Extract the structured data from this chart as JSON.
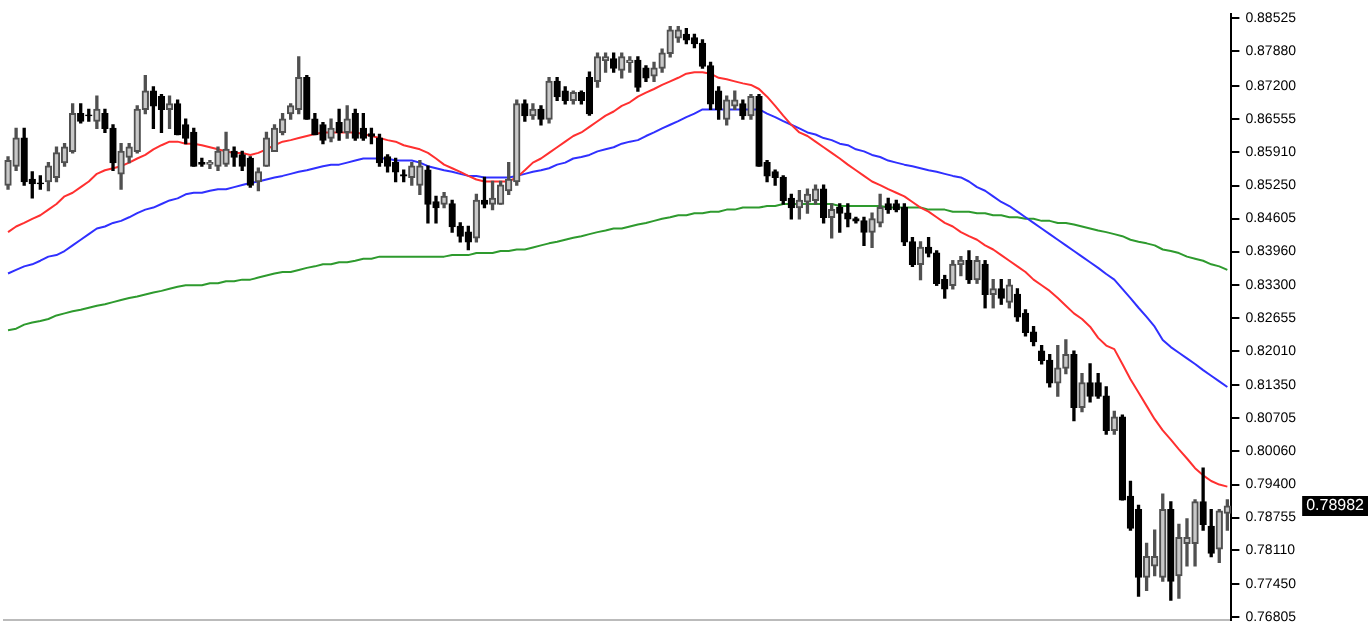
{
  "chart_data": {
    "type": "candlestick",
    "categories": [
      null,
      null,
      null,
      null,
      null,
      null,
      null,
      null,
      null,
      null,
      null,
      null,
      null,
      null,
      null,
      null,
      null,
      null,
      null,
      null,
      null,
      null,
      null,
      null,
      null,
      null,
      null,
      null,
      null,
      null,
      null,
      null,
      null,
      null,
      null,
      null,
      null,
      null,
      null,
      null,
      null,
      null,
      null,
      null,
      null,
      null,
      null,
      null,
      null,
      null,
      null,
      null,
      null,
      null,
      null,
      null,
      null,
      null,
      null,
      null,
      null,
      null,
      null,
      null,
      null,
      null,
      null,
      null,
      null,
      null,
      null,
      null,
      null,
      null,
      null,
      null,
      null,
      null,
      null,
      null,
      null,
      null,
      null,
      null,
      null,
      null,
      null,
      null,
      null,
      null,
      null,
      null,
      null,
      null,
      null,
      null,
      null,
      null,
      null,
      null,
      null,
      null,
      null,
      null,
      null,
      null,
      null,
      null,
      null,
      null,
      null,
      null,
      null,
      null,
      null,
      null,
      null,
      null,
      null,
      null,
      null,
      null,
      null,
      null,
      null,
      null,
      null,
      null,
      null,
      null,
      null,
      null,
      null,
      null,
      null,
      null,
      null,
      null,
      null,
      null,
      null,
      null,
      null,
      null,
      null,
      null,
      null,
      null,
      null,
      null,
      null,
      null
    ],
    "ohlc": [
      [
        0.8526,
        0.8581,
        0.8518,
        0.8574
      ],
      [
        0.8563,
        0.8637,
        0.8555,
        0.8618
      ],
      [
        0.8618,
        0.8637,
        0.8526,
        0.8533
      ],
      [
        0.8537,
        0.8552,
        0.8501,
        0.8529
      ],
      [
        0.853,
        0.8544,
        0.8518,
        0.8529
      ],
      [
        0.8533,
        0.857,
        0.8515,
        0.8563
      ],
      [
        0.8541,
        0.86,
        0.8533,
        0.8589
      ],
      [
        0.857,
        0.8607,
        0.8563,
        0.86
      ],
      [
        0.8592,
        0.8685,
        0.8589,
        0.8666
      ],
      [
        0.8666,
        0.8685,
        0.8648,
        0.8651
      ],
      [
        0.8663,
        0.8674,
        0.8651,
        0.8662
      ],
      [
        0.8651,
        0.87,
        0.8637,
        0.8674
      ],
      [
        0.8666,
        0.8674,
        0.8629,
        0.8637
      ],
      [
        0.8637,
        0.8644,
        0.8555,
        0.857
      ],
      [
        0.8548,
        0.8607,
        0.8518,
        0.8592
      ],
      [
        0.8581,
        0.8607,
        0.857,
        0.86
      ],
      [
        0.8592,
        0.8681,
        0.8589,
        0.8674
      ],
      [
        0.8674,
        0.874,
        0.8666,
        0.871
      ],
      [
        0.871,
        0.8718,
        0.8637,
        0.8681
      ],
      [
        0.8699,
        0.8703,
        0.8629,
        0.8674
      ],
      [
        0.8674,
        0.87,
        0.8637,
        0.8685
      ],
      [
        0.8685,
        0.8692,
        0.8625,
        0.8625
      ],
      [
        0.8644,
        0.8655,
        0.8607,
        0.8618
      ],
      [
        0.8629,
        0.8637,
        0.8563,
        0.8563
      ],
      [
        0.857,
        0.8578,
        0.8563,
        0.8567
      ],
      [
        0.8567,
        0.8574,
        0.8559,
        0.857
      ],
      [
        0.8563,
        0.86,
        0.8555,
        0.8592
      ],
      [
        0.8567,
        0.8629,
        0.8563,
        0.8596
      ],
      [
        0.8592,
        0.86,
        0.8563,
        0.8581
      ],
      [
        0.8585,
        0.8592,
        0.8555,
        0.8563
      ],
      [
        0.8578,
        0.8581,
        0.8522,
        0.8526
      ],
      [
        0.8533,
        0.8559,
        0.8515,
        0.8552
      ],
      [
        0.8563,
        0.8629,
        0.8563,
        0.8618
      ],
      [
        0.8592,
        0.8644,
        0.8592,
        0.8637
      ],
      [
        0.8629,
        0.8666,
        0.8625,
        0.8655
      ],
      [
        0.8666,
        0.8685,
        0.8655,
        0.8681
      ],
      [
        0.8674,
        0.8777,
        0.8666,
        0.8736
      ],
      [
        0.8736,
        0.874,
        0.8655,
        0.8655
      ],
      [
        0.8655,
        0.8666,
        0.8625,
        0.8625
      ],
      [
        0.8644,
        0.8648,
        0.8607,
        0.8614
      ],
      [
        0.8618,
        0.8655,
        0.8611,
        0.8637
      ],
      [
        0.8648,
        0.8674,
        0.8614,
        0.8629
      ],
      [
        0.8629,
        0.8681,
        0.8618,
        0.8655
      ],
      [
        0.8666,
        0.8674,
        0.8614,
        0.8618
      ],
      [
        0.8637,
        0.8666,
        0.8614,
        0.8618
      ],
      [
        0.8626,
        0.8637,
        0.8607,
        0.8622
      ],
      [
        0.8618,
        0.8625,
        0.8563,
        0.857
      ],
      [
        0.8581,
        0.8585,
        0.8552,
        0.8563
      ],
      [
        0.857,
        0.8578,
        0.8533,
        0.8552
      ],
      [
        0.8546,
        0.8555,
        0.8533,
        0.8544
      ],
      [
        0.8541,
        0.857,
        0.8526,
        0.8563
      ],
      [
        0.8526,
        0.8574,
        0.8508,
        0.8563
      ],
      [
        0.8555,
        0.8563,
        0.8452,
        0.8489
      ],
      [
        0.8493,
        0.8504,
        0.8452,
        0.8482
      ],
      [
        0.8489,
        0.8511,
        0.8482,
        0.8504
      ],
      [
        0.8489,
        0.8496,
        0.8434,
        0.8445
      ],
      [
        0.8445,
        0.8452,
        0.8415,
        0.8426
      ],
      [
        0.8434,
        0.8445,
        0.84,
        0.8415
      ],
      [
        0.8423,
        0.8508,
        0.8415,
        0.8496
      ],
      [
        0.8496,
        0.8541,
        0.8482,
        0.8489
      ],
      [
        0.8489,
        0.8533,
        0.8478,
        0.85
      ],
      [
        0.8489,
        0.8533,
        0.8489,
        0.8526
      ],
      [
        0.8515,
        0.857,
        0.8508,
        0.8537
      ],
      [
        0.8533,
        0.8692,
        0.8526,
        0.8685
      ],
      [
        0.8685,
        0.8692,
        0.8651,
        0.8662
      ],
      [
        0.8662,
        0.8685,
        0.8655,
        0.8674
      ],
      [
        0.8674,
        0.8681,
        0.8644,
        0.8655
      ],
      [
        0.8655,
        0.8736,
        0.8648,
        0.8729
      ],
      [
        0.8729,
        0.8736,
        0.8692,
        0.8699
      ],
      [
        0.871,
        0.8718,
        0.8685,
        0.8692
      ],
      [
        0.8692,
        0.871,
        0.8685,
        0.8707
      ],
      [
        0.8707,
        0.871,
        0.8685,
        0.8692
      ],
      [
        0.8736,
        0.8747,
        0.8663,
        0.8666
      ],
      [
        0.8729,
        0.8784,
        0.8718,
        0.8777
      ],
      [
        0.877,
        0.8784,
        0.8747,
        0.8777
      ],
      [
        0.8773,
        0.8784,
        0.8747,
        0.8755
      ],
      [
        0.8751,
        0.8784,
        0.8736,
        0.8777
      ],
      [
        0.8766,
        0.8777,
        0.8747,
        0.877
      ],
      [
        0.877,
        0.8777,
        0.871,
        0.8718
      ],
      [
        0.8755,
        0.8759,
        0.8729,
        0.8736
      ],
      [
        0.874,
        0.8766,
        0.8729,
        0.8755
      ],
      [
        0.8755,
        0.8792,
        0.8747,
        0.8784
      ],
      [
        0.8784,
        0.8836,
        0.8777,
        0.8829
      ],
      [
        0.8814,
        0.8836,
        0.8806,
        0.8829
      ],
      [
        0.8821,
        0.8832,
        0.8803,
        0.881
      ],
      [
        0.8814,
        0.8821,
        0.8795,
        0.8803
      ],
      [
        0.8803,
        0.881,
        0.8755,
        0.8759
      ],
      [
        0.8759,
        0.8766,
        0.8674,
        0.8685
      ],
      [
        0.871,
        0.8718,
        0.8655,
        0.8674
      ],
      [
        0.8655,
        0.87,
        0.8644,
        0.8692
      ],
      [
        0.8681,
        0.871,
        0.8674,
        0.8692
      ],
      [
        0.8685,
        0.8692,
        0.8655,
        0.8662
      ],
      [
        0.8662,
        0.8703,
        0.8655,
        0.8699
      ],
      [
        0.8699,
        0.8703,
        0.8563,
        0.8563
      ],
      [
        0.857,
        0.8574,
        0.8533,
        0.8544
      ],
      [
        0.8552,
        0.8555,
        0.8526,
        0.8541
      ],
      [
        0.8541,
        0.8544,
        0.8489,
        0.8496
      ],
      [
        0.85,
        0.8508,
        0.846,
        0.8482
      ],
      [
        0.8482,
        0.8515,
        0.846,
        0.8496
      ],
      [
        0.8493,
        0.8518,
        0.8471,
        0.8508
      ],
      [
        0.8496,
        0.8526,
        0.8489,
        0.8518
      ],
      [
        0.8518,
        0.8526,
        0.8452,
        0.8463
      ],
      [
        0.8463,
        0.8489,
        0.8423,
        0.8478
      ],
      [
        0.8482,
        0.8489,
        0.8434,
        0.8471
      ],
      [
        0.8471,
        0.8489,
        0.8445,
        0.846
      ],
      [
        0.846,
        0.8463,
        0.8452,
        0.8456
      ],
      [
        0.8456,
        0.8463,
        0.8408,
        0.8434
      ],
      [
        0.8434,
        0.8471,
        0.8404,
        0.846
      ],
      [
        0.8452,
        0.8508,
        0.8445,
        0.8482
      ],
      [
        0.8489,
        0.85,
        0.8471,
        0.8478
      ],
      [
        0.8489,
        0.8496,
        0.8474,
        0.8478
      ],
      [
        0.8482,
        0.8489,
        0.8408,
        0.8415
      ],
      [
        0.8415,
        0.8423,
        0.8367,
        0.8371
      ],
      [
        0.8371,
        0.8415,
        0.8341,
        0.8404
      ],
      [
        0.8404,
        0.8423,
        0.8386,
        0.8393
      ],
      [
        0.8393,
        0.8397,
        0.833,
        0.8334
      ],
      [
        0.8341,
        0.8349,
        0.8305,
        0.8323
      ],
      [
        0.833,
        0.8378,
        0.8323,
        0.8371
      ],
      [
        0.8371,
        0.8386,
        0.8349,
        0.8378
      ],
      [
        0.8378,
        0.8397,
        0.8334,
        0.8341
      ],
      [
        0.8341,
        0.8386,
        0.8334,
        0.8378
      ],
      [
        0.8371,
        0.8378,
        0.8286,
        0.8312
      ],
      [
        0.8312,
        0.8341,
        0.8286,
        0.8323
      ],
      [
        0.8323,
        0.8341,
        0.8293,
        0.8305
      ],
      [
        0.8297,
        0.8341,
        0.8286,
        0.833
      ],
      [
        0.8312,
        0.8323,
        0.826,
        0.8268
      ],
      [
        0.8275,
        0.8282,
        0.8231,
        0.8238
      ],
      [
        0.8238,
        0.8249,
        0.8212,
        0.822
      ],
      [
        0.8201,
        0.8212,
        0.8176,
        0.8183
      ],
      [
        0.8183,
        0.8194,
        0.8131,
        0.8139
      ],
      [
        0.8139,
        0.8212,
        0.8113,
        0.8168
      ],
      [
        0.8168,
        0.8223,
        0.8157,
        0.8194
      ],
      [
        0.8194,
        0.8201,
        0.8065,
        0.8091
      ],
      [
        0.8091,
        0.8157,
        0.8083,
        0.8139
      ],
      [
        0.8139,
        0.8176,
        0.8102,
        0.8113
      ],
      [
        0.8139,
        0.8157,
        0.8109,
        0.8113
      ],
      [
        0.8113,
        0.8131,
        0.8039,
        0.8046
      ],
      [
        0.8046,
        0.8083,
        0.8039,
        0.8072
      ],
      [
        0.8072,
        0.8076,
        0.791,
        0.791
      ],
      [
        0.7917,
        0.7946,
        0.7851,
        0.7855
      ],
      [
        0.7891,
        0.7899,
        0.7722,
        0.7759
      ],
      [
        0.7759,
        0.7825,
        0.7733,
        0.7799
      ],
      [
        0.7781,
        0.7851,
        0.7762,
        0.7799
      ],
      [
        0.7759,
        0.7921,
        0.7751,
        0.7891
      ],
      [
        0.7891,
        0.7906,
        0.7714,
        0.7751
      ],
      [
        0.7762,
        0.7862,
        0.7718,
        0.7836
      ],
      [
        0.7825,
        0.7873,
        0.7781,
        0.7836
      ],
      [
        0.7825,
        0.791,
        0.7781,
        0.7906
      ],
      [
        0.7906,
        0.7972,
        0.7851,
        0.7862
      ],
      [
        0.7858,
        0.7891,
        0.7799,
        0.7806
      ],
      [
        0.7814,
        0.7891,
        0.7788,
        0.7888
      ],
      [
        0.7884,
        0.791,
        0.7851,
        0.7898
      ]
    ],
    "series": [
      {
        "type": "line",
        "color": "#ff3030",
        "values": [
          0.8434,
          0.8445,
          0.8452,
          0.846,
          0.8467,
          0.8478,
          0.8489,
          0.8504,
          0.8511,
          0.8522,
          0.8533,
          0.8548,
          0.8555,
          0.8559,
          0.8563,
          0.857,
          0.8578,
          0.8585,
          0.8596,
          0.8604,
          0.8611,
          0.8611,
          0.8607,
          0.8607,
          0.8604,
          0.86,
          0.8596,
          0.8592,
          0.8589,
          0.8589,
          0.8585,
          0.8589,
          0.8596,
          0.8604,
          0.8611,
          0.8614,
          0.8618,
          0.8622,
          0.8626,
          0.8629,
          0.8629,
          0.8629,
          0.8629,
          0.8629,
          0.8626,
          0.8622,
          0.8618,
          0.8614,
          0.8611,
          0.8604,
          0.86,
          0.8596,
          0.8589,
          0.8578,
          0.8566,
          0.8559,
          0.8552,
          0.8544,
          0.8537,
          0.8533,
          0.8533,
          0.8533,
          0.8533,
          0.8541,
          0.8555,
          0.857,
          0.8578,
          0.8589,
          0.86,
          0.8611,
          0.8622,
          0.8629,
          0.864,
          0.8651,
          0.8662,
          0.867,
          0.8681,
          0.8688,
          0.8699,
          0.8707,
          0.8714,
          0.8722,
          0.8729,
          0.8736,
          0.8744,
          0.8747,
          0.8747,
          0.8744,
          0.8736,
          0.8733,
          0.8729,
          0.8725,
          0.8722,
          0.8714,
          0.8699,
          0.8681,
          0.8662,
          0.8644,
          0.8629,
          0.8622,
          0.8611,
          0.86,
          0.8589,
          0.8578,
          0.8566,
          0.8555,
          0.8544,
          0.8533,
          0.8526,
          0.8518,
          0.8511,
          0.8504,
          0.8493,
          0.8482,
          0.8474,
          0.8463,
          0.8452,
          0.8445,
          0.8434,
          0.8426,
          0.8419,
          0.8408,
          0.84,
          0.8389,
          0.8378,
          0.8367,
          0.8356,
          0.8341,
          0.833,
          0.8319,
          0.8305,
          0.829,
          0.8275,
          0.8264,
          0.8249,
          0.8227,
          0.8212,
          0.8205,
          0.8176,
          0.8146,
          0.812,
          0.8094,
          0.8068,
          0.8046,
          0.8028,
          0.8009,
          0.7991,
          0.7972,
          0.7958,
          0.7947,
          0.794,
          0.7936
        ]
      },
      {
        "type": "line",
        "color": "#3030ff",
        "values": [
          0.8353,
          0.836,
          0.8367,
          0.8371,
          0.8378,
          0.8386,
          0.8389,
          0.8397,
          0.8408,
          0.8419,
          0.843,
          0.8441,
          0.8445,
          0.8452,
          0.8456,
          0.8463,
          0.8471,
          0.8478,
          0.8482,
          0.8489,
          0.8496,
          0.85,
          0.8508,
          0.8511,
          0.8511,
          0.8515,
          0.8518,
          0.8518,
          0.8522,
          0.8526,
          0.853,
          0.8533,
          0.8537,
          0.8541,
          0.8544,
          0.8548,
          0.8552,
          0.8555,
          0.8559,
          0.8563,
          0.8566,
          0.8566,
          0.857,
          0.8574,
          0.8578,
          0.8578,
          0.8578,
          0.8578,
          0.8574,
          0.8574,
          0.8574,
          0.857,
          0.8563,
          0.8559,
          0.8555,
          0.8552,
          0.8548,
          0.8544,
          0.8544,
          0.8541,
          0.8541,
          0.8541,
          0.8541,
          0.8544,
          0.8548,
          0.8552,
          0.8555,
          0.8559,
          0.8566,
          0.857,
          0.8578,
          0.8581,
          0.8585,
          0.8592,
          0.8596,
          0.86,
          0.8607,
          0.8611,
          0.8614,
          0.8622,
          0.8629,
          0.8637,
          0.8644,
          0.8651,
          0.8659,
          0.8666,
          0.8674,
          0.8674,
          0.8674,
          0.8674,
          0.8674,
          0.8674,
          0.8674,
          0.8674,
          0.8666,
          0.8659,
          0.8651,
          0.8644,
          0.8637,
          0.8629,
          0.8625,
          0.8618,
          0.8614,
          0.8607,
          0.8604,
          0.8596,
          0.8592,
          0.8585,
          0.8581,
          0.8574,
          0.857,
          0.8566,
          0.8563,
          0.8559,
          0.8555,
          0.8552,
          0.8548,
          0.8544,
          0.8541,
          0.8533,
          0.8522,
          0.8515,
          0.8504,
          0.8493,
          0.8485,
          0.8474,
          0.8463,
          0.8452,
          0.8441,
          0.843,
          0.8419,
          0.8408,
          0.8397,
          0.8386,
          0.8375,
          0.8364,
          0.8352,
          0.8341,
          0.8323,
          0.8305,
          0.8286,
          0.8268,
          0.8249,
          0.8223,
          0.8209,
          0.8198,
          0.8187,
          0.8176,
          0.8164,
          0.8153,
          0.8142,
          0.8131
        ]
      },
      {
        "type": "line",
        "color": "#2e9a2e",
        "values": [
          0.8242,
          0.8245,
          0.8253,
          0.8257,
          0.826,
          0.8264,
          0.8271,
          0.8275,
          0.8279,
          0.8282,
          0.8286,
          0.829,
          0.8293,
          0.8297,
          0.8301,
          0.8305,
          0.8308,
          0.8312,
          0.8316,
          0.8319,
          0.8323,
          0.8327,
          0.833,
          0.833,
          0.833,
          0.8334,
          0.8334,
          0.8338,
          0.8338,
          0.8341,
          0.8341,
          0.8345,
          0.8349,
          0.8353,
          0.8356,
          0.8356,
          0.836,
          0.8364,
          0.8367,
          0.8371,
          0.8371,
          0.8375,
          0.8375,
          0.8378,
          0.8382,
          0.8382,
          0.8386,
          0.8386,
          0.8386,
          0.8386,
          0.8386,
          0.8386,
          0.8386,
          0.8386,
          0.8386,
          0.8389,
          0.8389,
          0.8389,
          0.8393,
          0.8393,
          0.8393,
          0.8397,
          0.8397,
          0.84,
          0.84,
          0.8404,
          0.8408,
          0.8412,
          0.8415,
          0.8419,
          0.8423,
          0.8426,
          0.843,
          0.8434,
          0.8437,
          0.8441,
          0.8441,
          0.8445,
          0.8449,
          0.8452,
          0.8456,
          0.846,
          0.8463,
          0.8467,
          0.8467,
          0.8471,
          0.8471,
          0.8474,
          0.8474,
          0.8478,
          0.8478,
          0.8482,
          0.8482,
          0.8482,
          0.8485,
          0.8485,
          0.8489,
          0.8489,
          0.8489,
          0.8489,
          0.8489,
          0.8489,
          0.8489,
          0.8485,
          0.8485,
          0.8485,
          0.8485,
          0.8485,
          0.8485,
          0.8482,
          0.8482,
          0.8482,
          0.8482,
          0.8482,
          0.8478,
          0.8478,
          0.8478,
          0.8474,
          0.8474,
          0.8474,
          0.8471,
          0.8471,
          0.8467,
          0.8467,
          0.8463,
          0.8463,
          0.846,
          0.846,
          0.8456,
          0.8456,
          0.8452,
          0.8452,
          0.8449,
          0.8445,
          0.8441,
          0.8437,
          0.8434,
          0.843,
          0.8426,
          0.8419,
          0.8415,
          0.8412,
          0.8408,
          0.84,
          0.8397,
          0.8393,
          0.8386,
          0.8382,
          0.8378,
          0.8371,
          0.8367,
          0.836
        ]
      }
    ],
    "ylim": [
      0.7675,
      0.886
    ],
    "yticks": [
      {
        "value": 0.88525,
        "label": "0.88525"
      },
      {
        "value": 0.8788,
        "label": "0.87880"
      },
      {
        "value": 0.872,
        "label": "0.87200"
      },
      {
        "value": 0.86555,
        "label": "0.86555"
      },
      {
        "value": 0.8591,
        "label": "0.85910"
      },
      {
        "value": 0.8525,
        "label": "0.85250"
      },
      {
        "value": 0.84605,
        "label": "0.84605"
      },
      {
        "value": 0.8396,
        "label": "0.83960"
      },
      {
        "value": 0.833,
        "label": "0.83300"
      },
      {
        "value": 0.82655,
        "label": "0.82655"
      },
      {
        "value": 0.8201,
        "label": "0.82010"
      },
      {
        "value": 0.8135,
        "label": "0.81350"
      },
      {
        "value": 0.80705,
        "label": "0.80705"
      },
      {
        "value": 0.8006,
        "label": "0.80060"
      },
      {
        "value": 0.794,
        "label": "0.79400"
      },
      {
        "value": 0.78755,
        "label": "0.78755"
      },
      {
        "value": 0.7811,
        "label": "0.78110"
      },
      {
        "value": 0.7745,
        "label": "0.77450"
      },
      {
        "value": 0.76805,
        "label": "0.76805"
      }
    ],
    "annotations": [
      "0.78982"
    ],
    "tick_labels": "y"
  }
}
